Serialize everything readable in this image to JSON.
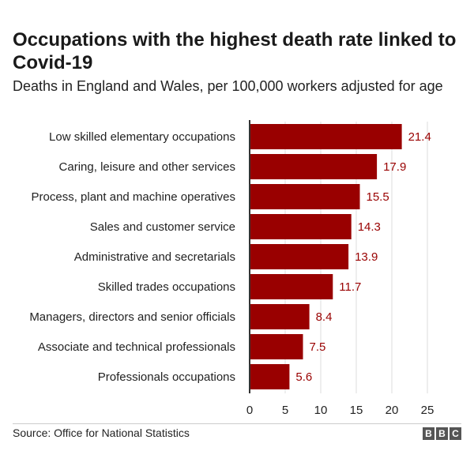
{
  "header": {
    "title": "Occupations with the highest death rate linked to Covid-19",
    "subtitle": "Deaths in England and Wales, per 100,000 workers adjusted for age"
  },
  "footer": {
    "source": "Source: Office for National Statistics",
    "logo_letters": [
      "B",
      "B",
      "C"
    ]
  },
  "colors": {
    "bar": "#990000",
    "value_label": "#990000",
    "axis": "#333333",
    "grid": "#dddddd"
  },
  "chart_data": {
    "type": "bar",
    "orientation": "horizontal",
    "title": "Occupations with the highest death rate linked to Covid-19",
    "subtitle": "Deaths in England and Wales, per 100,000 workers adjusted for age",
    "categories": [
      "Low skilled elementary occupations",
      "Caring, leisure and other services",
      "Process, plant and machine operatives",
      "Sales and customer service",
      "Administrative and secretarials",
      "Skilled trades occupations",
      "Managers, directors and senior officials",
      "Associate and technical professionals",
      "Professionals occupations"
    ],
    "values": [
      21.4,
      17.9,
      15.5,
      14.3,
      13.9,
      11.7,
      8.4,
      7.5,
      5.6
    ],
    "value_labels": [
      "21.4",
      "17.9",
      "15.5",
      "14.3",
      "13.9",
      "11.7",
      "8.4",
      "7.5",
      "5.6"
    ],
    "xlim": [
      0,
      25
    ],
    "xticks": [
      0,
      5,
      10,
      15,
      20,
      25
    ],
    "grid": true,
    "xlabel": "",
    "ylabel": ""
  }
}
